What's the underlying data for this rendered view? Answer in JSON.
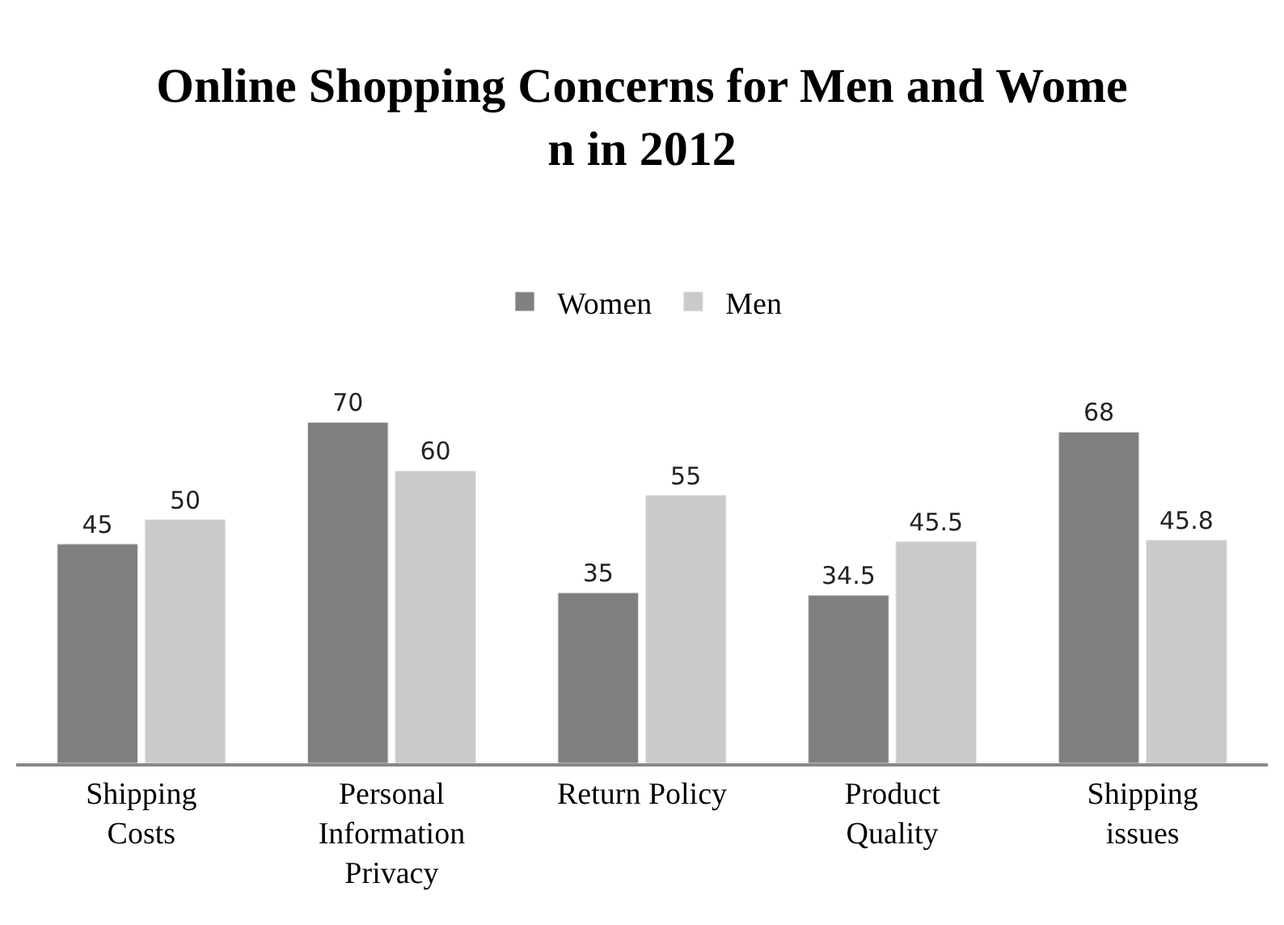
{
  "chart_data": {
    "type": "bar",
    "title": "Online Shopping Concerns for Men and Wome\nn in 2012",
    "categories": [
      "Shipping\nCosts",
      "Personal\nInformation\nPrivacy",
      "Return Policy",
      "Product\nQuality",
      "Shipping\nissues"
    ],
    "series": [
      {
        "name": "Women",
        "color": "#808080",
        "values": [
          45,
          70,
          35,
          34.5,
          68
        ]
      },
      {
        "name": "Men",
        "color": "#cacaca",
        "values": [
          50,
          60,
          55,
          45.5,
          45.8
        ]
      }
    ],
    "data_labels": true,
    "legend": "top",
    "tick_labels": "x"
  }
}
